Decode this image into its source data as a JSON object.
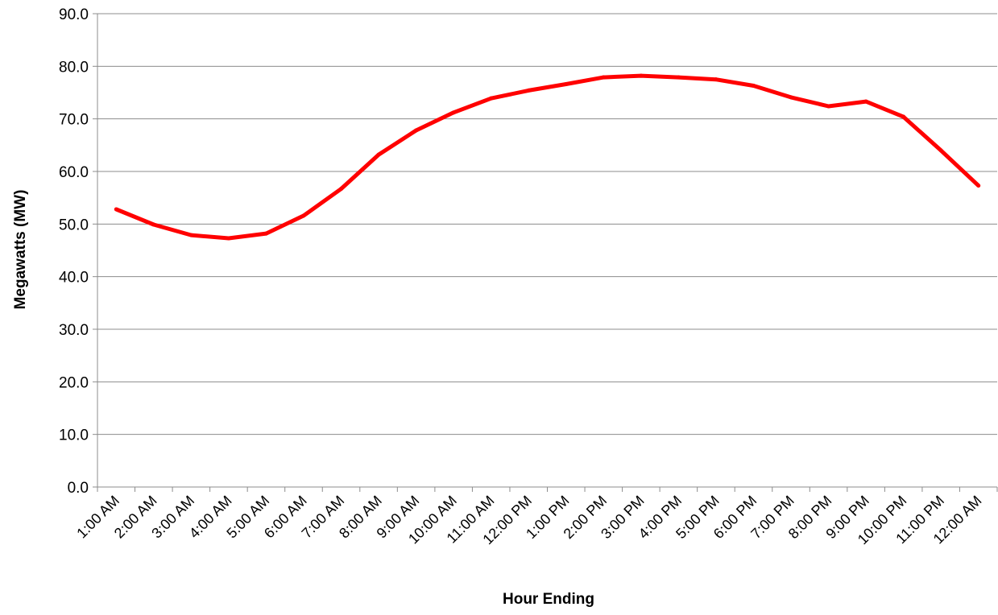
{
  "chart_data": {
    "type": "line",
    "title": "",
    "xlabel": "Hour Ending",
    "ylabel": "Megawatts (MW)",
    "ylim": [
      0,
      90
    ],
    "y_tick_step": 10,
    "y_tick_labels": [
      "0.0",
      "10.0",
      "20.0",
      "30.0",
      "40.0",
      "50.0",
      "60.0",
      "70.0",
      "80.0",
      "90.0"
    ],
    "grid": "horizontal",
    "legend": "none",
    "categories": [
      "1:00 AM",
      "2:00 AM",
      "3:00 AM",
      "4:00 AM",
      "5:00 AM",
      "6:00 AM",
      "7:00 AM",
      "8:00 AM",
      "9:00 AM",
      "10:00 AM",
      "11:00 AM",
      "12:00 PM",
      "1:00 PM",
      "2:00 PM",
      "3:00 PM",
      "4:00 PM",
      "5:00 PM",
      "6:00 PM",
      "7:00 PM",
      "8:00 PM",
      "9:00 PM",
      "10:00 PM",
      "11:00 PM",
      "12:00 AM"
    ],
    "series": [
      {
        "color": "#ff0000",
        "values": [
          52.8,
          49.9,
          47.9,
          47.3,
          48.2,
          51.6,
          56.7,
          63.2,
          67.8,
          71.2,
          73.9,
          75.4,
          76.6,
          77.9,
          78.2,
          77.9,
          77.5,
          76.3,
          74.1,
          72.4,
          73.3,
          70.4,
          64.0,
          57.3
        ]
      }
    ]
  }
}
